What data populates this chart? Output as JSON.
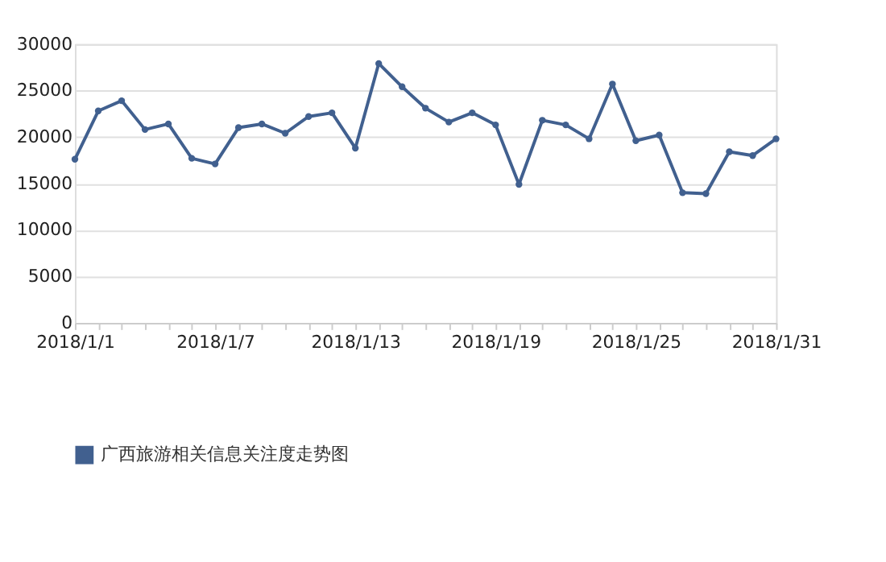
{
  "chart_data": {
    "type": "line",
    "categories": [
      "2018/1/1",
      null,
      null,
      null,
      null,
      null,
      "2018/1/7",
      null,
      null,
      null,
      null,
      null,
      "2018/1/13",
      null,
      null,
      null,
      null,
      null,
      "2018/1/19",
      null,
      null,
      null,
      null,
      null,
      "2018/1/25",
      null,
      null,
      null,
      null,
      null,
      "2018/1/31"
    ],
    "series": [
      {
        "name": "广西旅游相关信息关注度走势图",
        "color": "#41608f",
        "values": [
          17600,
          22800,
          23900,
          20800,
          21400,
          17700,
          17100,
          21000,
          21400,
          20400,
          22200,
          22600,
          18800,
          27900,
          25400,
          23100,
          21600,
          22600,
          21300,
          14900,
          21800,
          21300,
          19800,
          25700,
          19600,
          20200,
          14000,
          13900,
          18400,
          18000,
          19800
        ]
      }
    ],
    "ylim": [
      0,
      30000
    ],
    "yticks": [
      0,
      5000,
      10000,
      15000,
      20000,
      25000,
      30000
    ],
    "grid": "y",
    "legend": "bottom",
    "marker": "circle",
    "line_style": "solid"
  }
}
